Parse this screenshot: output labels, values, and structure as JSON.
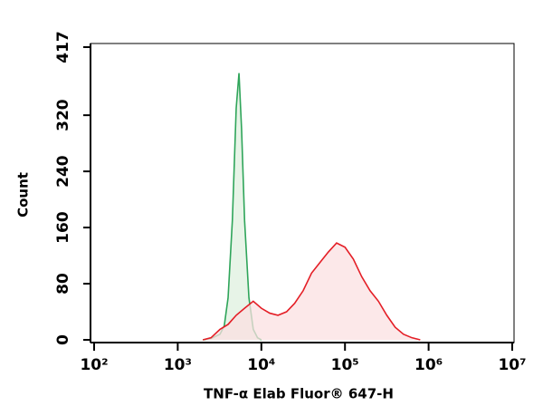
{
  "chart_data": {
    "type": "line",
    "x_label": "TNF-α Elab Fluor® 647-H",
    "y_label": "Count",
    "log_x": true,
    "xlim": [
      100,
      10000000
    ],
    "xticks": [
      {
        "value": 100,
        "label": "10²"
      },
      {
        "value": 1000,
        "label": "10³"
      },
      {
        "value": 10000,
        "label": "10⁴"
      },
      {
        "value": 100000,
        "label": "10⁵"
      },
      {
        "value": 1000000,
        "label": "10⁶"
      },
      {
        "value": 10000000,
        "label": "10⁷"
      }
    ],
    "ylim": [
      0,
      417
    ],
    "yticks": [
      0,
      80,
      160,
      240,
      320,
      417
    ],
    "series": [
      {
        "color": "#2fa55a",
        "fill": "#dff0df",
        "x": [
          2000,
          2500,
          3200,
          3600,
          4000,
          4500,
          5000,
          5400,
          5800,
          6300,
          7100,
          8000,
          9000,
          10000
        ],
        "values": [
          0,
          2,
          8,
          20,
          60,
          170,
          330,
          380,
          300,
          170,
          60,
          15,
          3,
          0
        ]
      },
      {
        "color": "#e41e26",
        "fill": "#fbe0e2",
        "x": [
          2000,
          2500,
          3200,
          4000,
          5000,
          6300,
          8000,
          10000,
          12600,
          15800,
          20000,
          25000,
          31600,
          39800,
          50100,
          63100,
          79400,
          100000,
          125900,
          158500,
          199500,
          251200,
          316200,
          398100,
          501200,
          631000,
          794300
        ],
        "values": [
          0,
          3,
          15,
          22,
          35,
          45,
          55,
          45,
          38,
          35,
          40,
          52,
          70,
          95,
          110,
          125,
          138,
          132,
          115,
          90,
          70,
          55,
          35,
          18,
          8,
          3,
          0
        ]
      }
    ]
  }
}
